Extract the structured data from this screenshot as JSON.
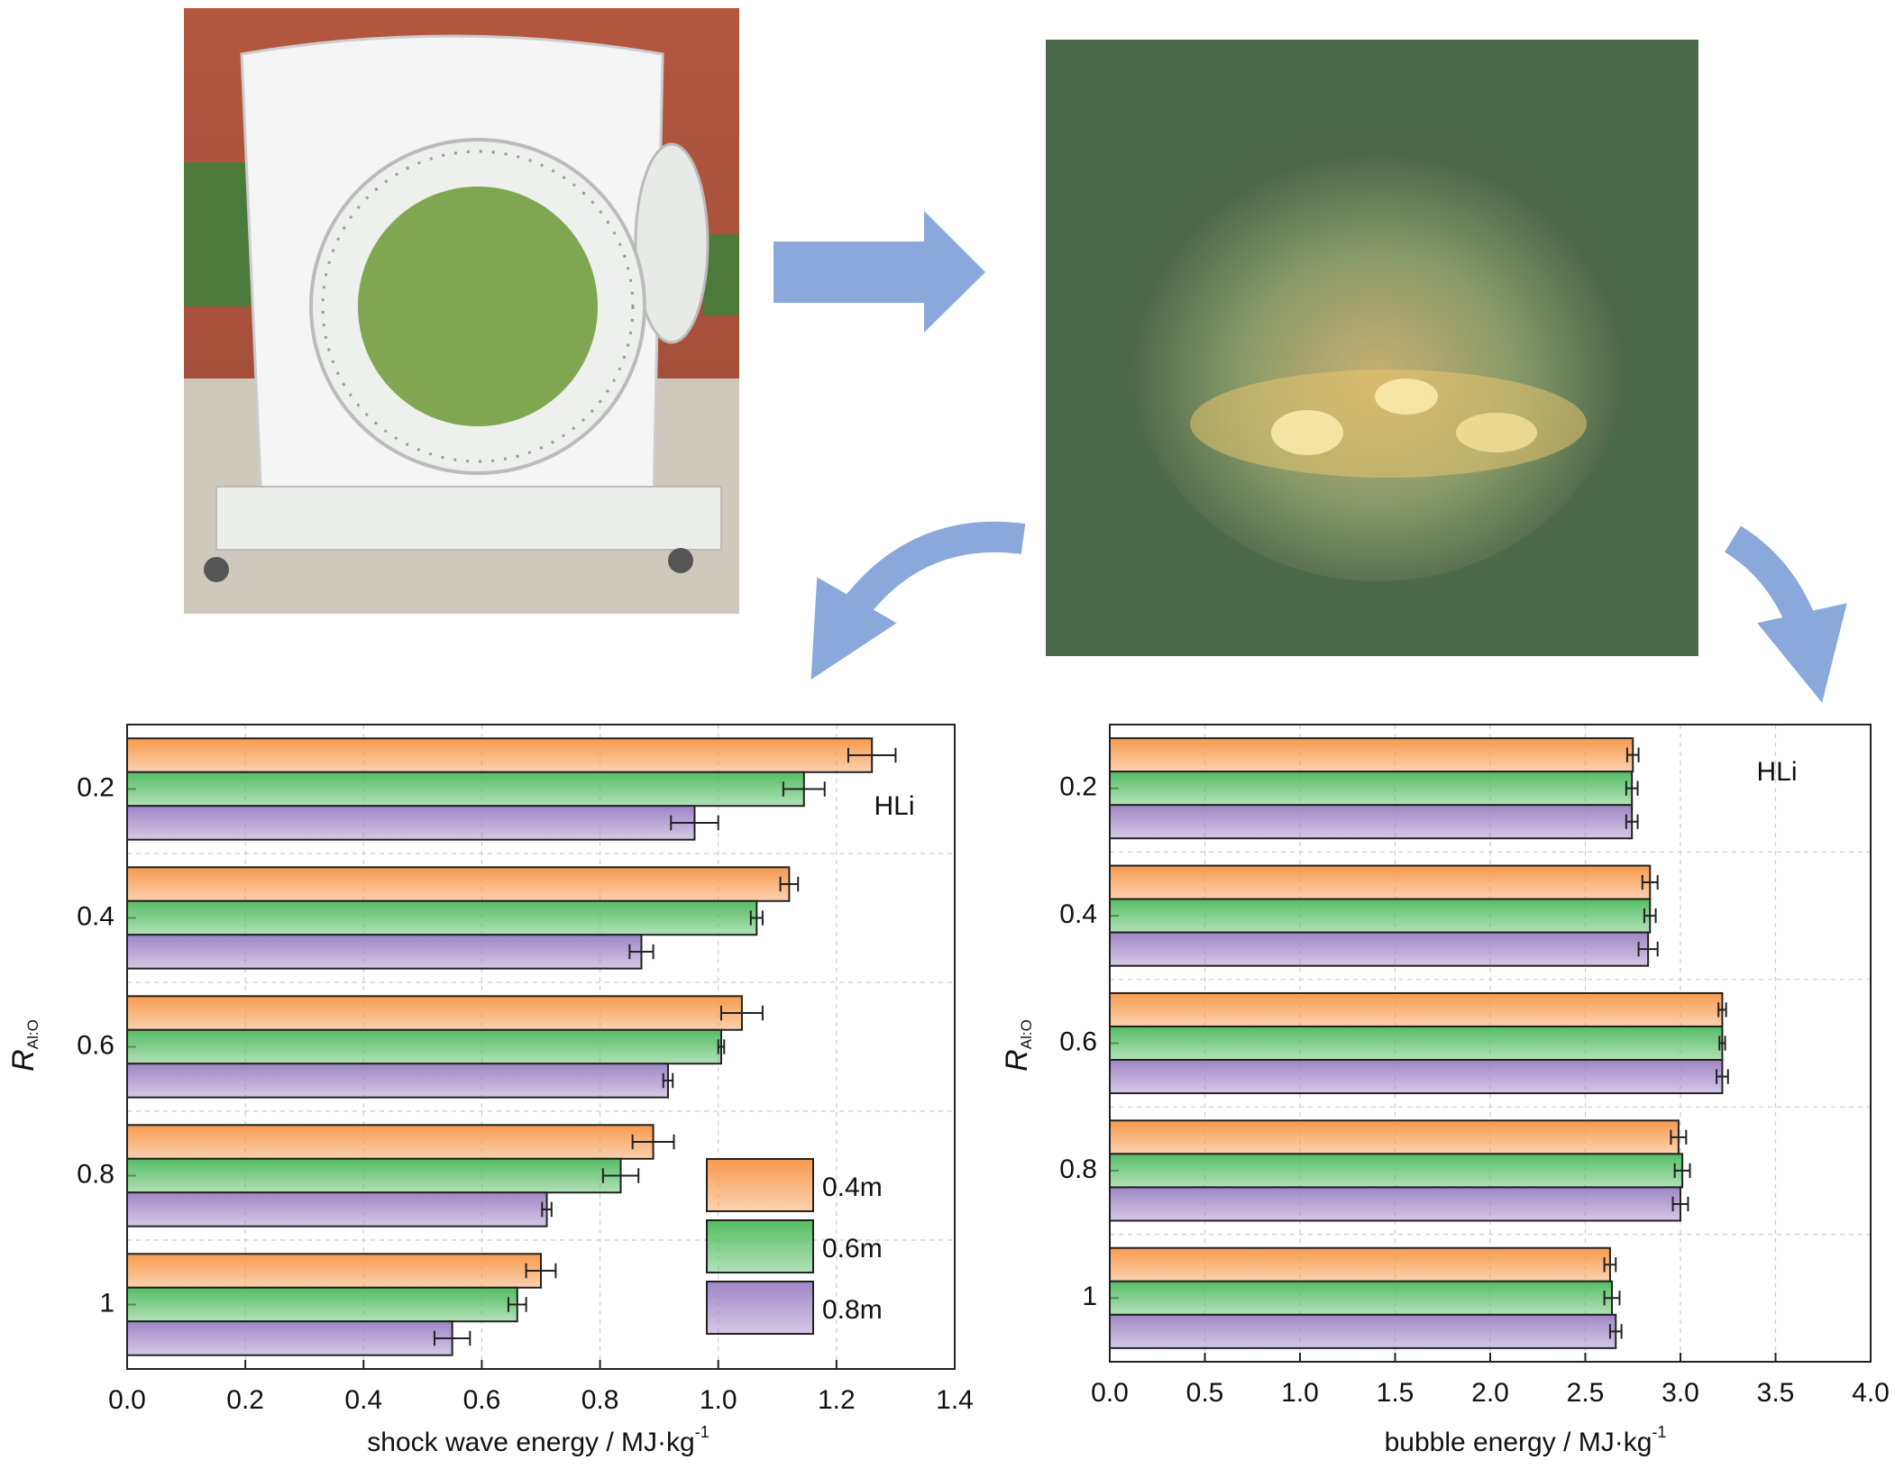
{
  "chart_data": [
    {
      "type": "hbar",
      "ylabel": "R",
      "ylabel_subscript": "Al:O",
      "xlabel": "shock wave energy / MJ·kg",
      "xlabel_superscript": "-1",
      "annotation": "HLi",
      "categories": [
        "0.2",
        "0.4",
        "0.6",
        "0.8",
        "1"
      ],
      "series": [
        {
          "name": "0.4m",
          "color": "#f79a4e",
          "values": [
            1.26,
            1.12,
            1.04,
            0.89,
            0.7
          ],
          "errors": [
            0.04,
            0.015,
            0.035,
            0.035,
            0.025
          ]
        },
        {
          "name": "0.6m",
          "color": "#55bd63",
          "values": [
            1.145,
            1.065,
            1.005,
            0.835,
            0.66
          ],
          "errors": [
            0.035,
            0.01,
            0.005,
            0.03,
            0.015
          ]
        },
        {
          "name": "0.8m",
          "color": "#9f86c6",
          "values": [
            0.96,
            0.87,
            0.915,
            0.71,
            0.55
          ],
          "errors": [
            0.04,
            0.02,
            0.008,
            0.008,
            0.03
          ]
        }
      ],
      "xlim": [
        0,
        1.4
      ],
      "xticks": [
        {
          "value": 0,
          "label": "0.0"
        },
        0.2,
        0.4,
        0.6,
        0.8,
        {
          "value": 1,
          "label": "1.0"
        },
        1.2,
        1.4
      ],
      "grid": true,
      "legend": "lower right"
    },
    {
      "type": "hbar",
      "ylabel": "R",
      "ylabel_subscript": "Al:O",
      "xlabel": "bubble energy / MJ·kg",
      "xlabel_superscript": "-1",
      "annotation": "HLi",
      "categories": [
        "0.2",
        "0.4",
        "0.6",
        "0.8",
        "1"
      ],
      "series": [
        {
          "color": "#f79a4e",
          "values": [
            2.75,
            2.84,
            3.22,
            2.99,
            2.63
          ],
          "errors": [
            0.03,
            0.04,
            0.02,
            0.04,
            0.03
          ]
        },
        {
          "color": "#55bd63",
          "values": [
            2.745,
            2.84,
            3.22,
            3.01,
            2.64
          ],
          "errors": [
            0.03,
            0.03,
            0.015,
            0.04,
            0.04
          ]
        },
        {
          "color": "#9f86c6",
          "values": [
            2.745,
            2.83,
            3.22,
            3.0,
            2.66
          ],
          "errors": [
            0.03,
            0.05,
            0.03,
            0.04,
            0.03
          ]
        }
      ],
      "xlim": [
        0,
        4
      ],
      "xticks": [
        {
          "value": 0,
          "label": "0.0"
        },
        0.5,
        {
          "value": 1,
          "label": "1.0"
        },
        1.5,
        {
          "value": 2,
          "label": "2.0"
        },
        2.5,
        {
          "value": 3,
          "label": "3.0"
        },
        3.5,
        {
          "value": 4,
          "label": "4.0"
        }
      ],
      "grid": true,
      "legend": "none"
    }
  ]
}
